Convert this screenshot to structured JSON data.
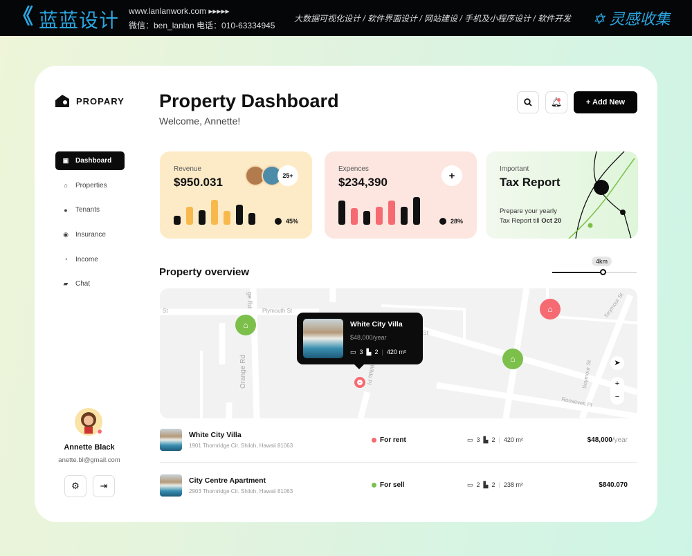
{
  "banner": {
    "brand": "蓝蓝设计",
    "site": "www.lanlanwork.com ▸▸▸▸▸",
    "contact": "微信：ben_lanlan    电话：010-63334945",
    "services": "大数据可视化设计 / 软件界面设计 / 网站建设 / 手机及小程序设计 / 软件开发",
    "collect": "灵感收集"
  },
  "app": {
    "name": "PROPARY"
  },
  "sidebar": {
    "items": [
      {
        "label": "Dashboard",
        "icon": "briefcase-icon",
        "active": true
      },
      {
        "label": "Properties",
        "icon": "home-icon"
      },
      {
        "label": "Tenants",
        "icon": "person-icon"
      },
      {
        "label": "Insurance",
        "icon": "shield-icon"
      },
      {
        "label": "Income",
        "icon": "pie-icon"
      },
      {
        "label": "Chat",
        "icon": "chat-icon"
      }
    ],
    "user": {
      "name": "Annette Black",
      "email": "anette.bl@gmail.com"
    }
  },
  "header": {
    "title": "Property Dashboard",
    "welcome": "Welcome, Annette!",
    "add_label": "+ Add New"
  },
  "cards": {
    "revenue": {
      "label": "Revenue",
      "value": "$950.031",
      "avatars_more": "25+",
      "percent": "45%",
      "bars": [
        {
          "v": 0.35,
          "c": "#111"
        },
        {
          "v": 0.72,
          "c": "#f7b94c"
        },
        {
          "v": 0.58,
          "c": "#111"
        },
        {
          "v": 1,
          "c": "#f7b94c"
        },
        {
          "v": 0.55,
          "c": "#f7b94c"
        },
        {
          "v": 0.8,
          "c": "#111"
        },
        {
          "v": 0.48,
          "c": "#111"
        }
      ]
    },
    "expenses": {
      "label": "Expences",
      "value": "$234,390",
      "add": "+",
      "percent": "28%",
      "bars": [
        {
          "v": 0.88,
          "c": "#111"
        },
        {
          "v": 0.6,
          "c": "#f66a72"
        },
        {
          "v": 0.5,
          "c": "#111"
        },
        {
          "v": 0.65,
          "c": "#f66a72"
        },
        {
          "v": 0.88,
          "c": "#f66a72"
        },
        {
          "v": 0.66,
          "c": "#111"
        },
        {
          "v": 1,
          "c": "#111"
        }
      ]
    },
    "tax": {
      "label": "Important",
      "title": "Tax Report",
      "desc": "Prepare your yearly",
      "desc2": "Tax Report till",
      "date": "Oct 20"
    }
  },
  "overview": {
    "title": "Property overview",
    "distance": "4km",
    "distance_fraction": 0.6,
    "streets": [
      "St",
      "Plymouth St",
      "ge Rd",
      "Orange Rd",
      "Wilde Pl",
      "St",
      "Seymour St",
      "Seymour St",
      "Roosevelt Pl"
    ],
    "popup": {
      "name": "White City Villa",
      "price": "$48,000/year",
      "beds": "3",
      "baths": "2",
      "area": "420 m²"
    },
    "zoom_in": "+",
    "zoom_out": "−"
  },
  "listings": [
    {
      "name": "White City Villa",
      "address": "1901 Thornridge Cir. Shiloh, Hawaii 81063",
      "status": "For rent",
      "status_color": "#f66a72",
      "beds": "3",
      "baths": "2",
      "area": "420 m²",
      "price": "$48,000",
      "price_unit": "/year"
    },
    {
      "name": "City Centre Apartment",
      "address": "2903 Thornridge Cir. Shiloh, Hawaii 81063",
      "status": "For sell",
      "status_color": "#7cc04b",
      "beds": "2",
      "baths": "2",
      "area": "238 m²",
      "price": "$840.070",
      "price_unit": ""
    }
  ],
  "colors": {
    "accent": "#050505",
    "revenue_bg": "#fdebc8",
    "expense_bg": "#fde6e0",
    "tax_bg": "#e9f8e4",
    "green_pin": "#7cc04b",
    "red_pin": "#f66a72"
  }
}
